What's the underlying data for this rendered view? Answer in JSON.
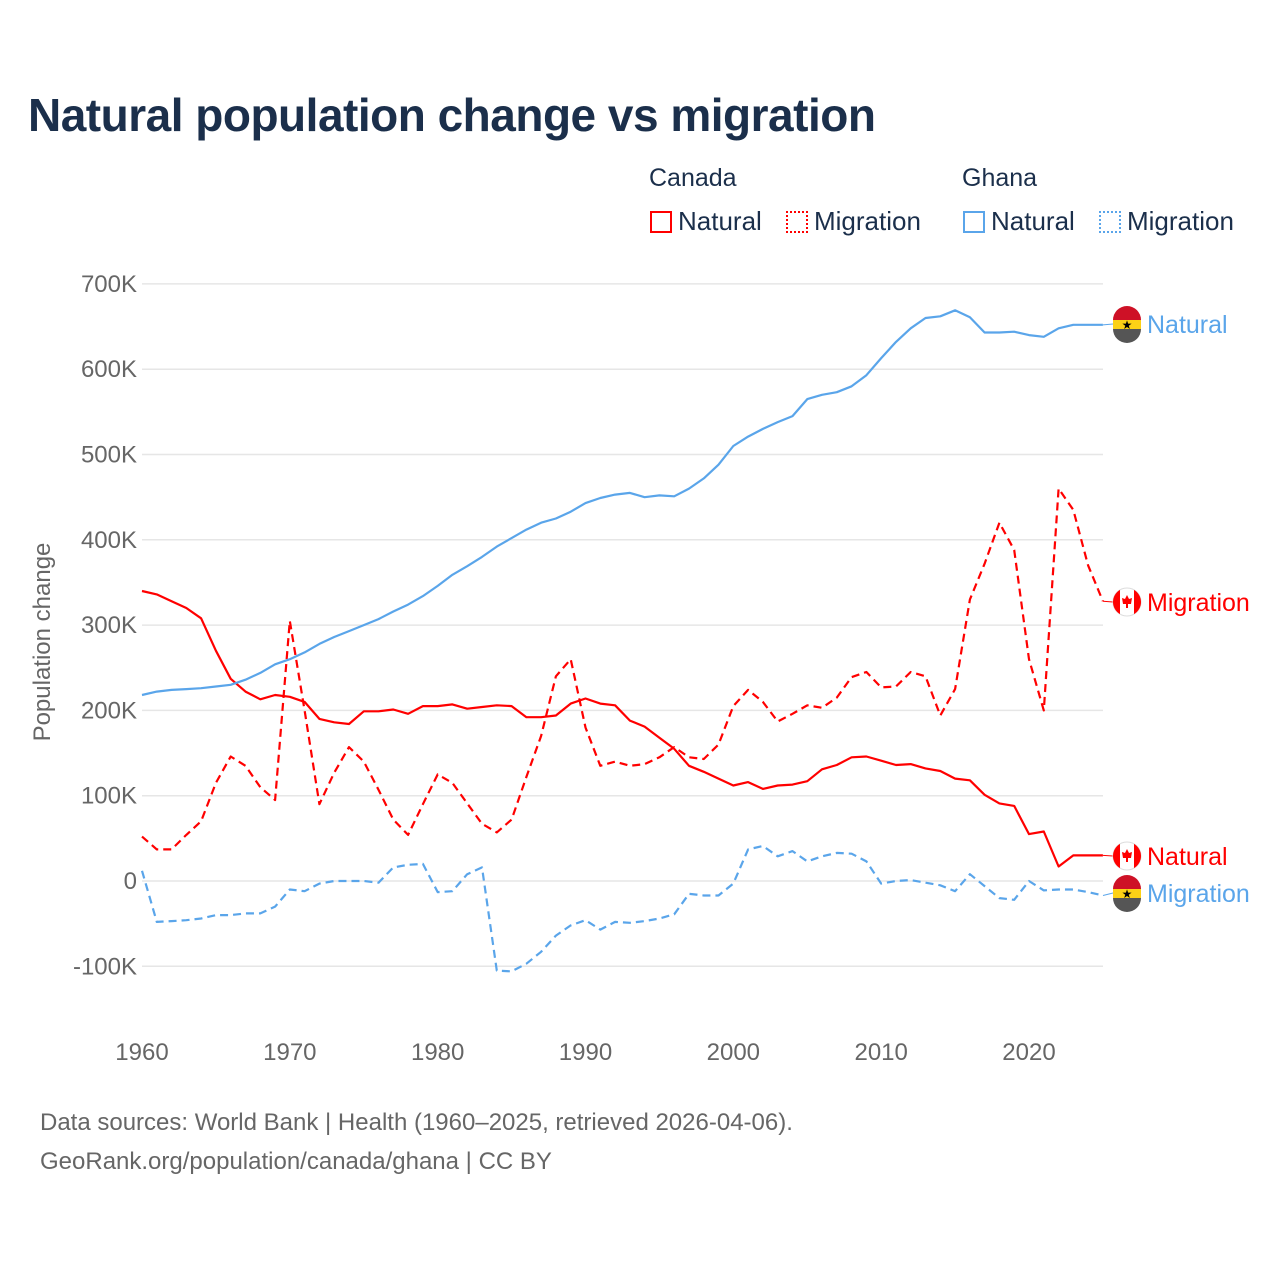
{
  "title": "Natural population change vs migration",
  "legend": {
    "groups": [
      {
        "name": "Canada",
        "color": "#ff0000",
        "items": [
          "Natural",
          "Migration"
        ]
      },
      {
        "name": "Ghana",
        "color": "#5aa5ea",
        "items": [
          "Natural",
          "Migration"
        ]
      }
    ]
  },
  "chart_data": {
    "type": "line",
    "title": "Natural population change vs migration",
    "xlabel": "",
    "ylabel": "Population change",
    "xlim": [
      1960,
      2025
    ],
    "ylim": [
      -100000,
      700000
    ],
    "x_ticks": [
      "1960",
      "1970",
      "1980",
      "1990",
      "2000",
      "2010",
      "2020"
    ],
    "y_ticks": [
      "700K",
      "600K",
      "500K",
      "400K",
      "300K",
      "200K",
      "100K",
      "0",
      "-100K"
    ],
    "grid": true,
    "x_start": 1960,
    "series": [
      {
        "name": "Canada Natural",
        "country": "Canada",
        "kind": "Natural",
        "color": "#ff0000",
        "dash": false,
        "end_label": "Natural",
        "values": [
          340,
          336,
          328,
          320,
          308,
          270,
          237,
          222,
          213,
          218,
          216,
          210,
          190,
          186,
          184,
          199,
          199,
          201,
          196,
          205,
          205,
          207,
          202,
          204,
          206,
          205,
          192,
          192,
          194,
          208,
          214,
          208,
          206,
          188,
          181,
          168,
          155,
          135,
          128,
          120,
          112,
          116,
          108,
          112,
          113,
          117,
          131,
          136,
          145,
          146,
          141,
          136,
          137,
          132,
          129,
          120,
          118,
          101,
          91,
          88,
          55,
          58,
          17,
          30,
          30,
          30
        ]
      },
      {
        "name": "Canada Migration",
        "country": "Canada",
        "kind": "Migration",
        "color": "#ff0000",
        "dash": true,
        "end_label": "Migration",
        "values": [
          52,
          37,
          37,
          54,
          70,
          115,
          146,
          135,
          110,
          95,
          305,
          200,
          90,
          127,
          157,
          140,
          107,
          72,
          54,
          90,
          125,
          115,
          91,
          67,
          57,
          72,
          122,
          170,
          240,
          260,
          180,
          135,
          140,
          135,
          137,
          145,
          157,
          145,
          143,
          160,
          205,
          224,
          210,
          187,
          196,
          206,
          203,
          215,
          239,
          245,
          227,
          228,
          245,
          240,
          194,
          225,
          330,
          372,
          420,
          388,
          260,
          200,
          460,
          435,
          370,
          328
        ]
      },
      {
        "name": "Ghana Natural",
        "country": "Ghana",
        "kind": "Natural",
        "color": "#5aa5ea",
        "dash": false,
        "end_label": "Natural",
        "values": [
          218,
          222,
          224,
          225,
          226,
          228,
          230,
          236,
          244,
          254,
          260,
          268,
          278,
          286,
          293,
          300,
          307,
          316,
          324,
          334,
          346,
          359,
          369,
          380,
          392,
          402,
          412,
          420,
          425,
          433,
          443,
          449,
          453,
          455,
          450,
          452,
          451,
          460,
          472,
          488,
          510,
          521,
          530,
          538,
          545,
          565,
          570,
          573,
          580,
          593,
          613,
          632,
          648,
          660,
          662,
          669,
          661,
          643,
          643,
          644,
          640,
          638,
          648,
          652,
          652,
          652
        ]
      },
      {
        "name": "Ghana Migration",
        "country": "Ghana",
        "kind": "Migration",
        "color": "#5aa5ea",
        "dash": true,
        "end_label": "Migration",
        "values": [
          12,
          -48,
          -47,
          -46,
          -44,
          -40,
          -40,
          -38,
          -38,
          -30,
          -10,
          -12,
          -3,
          0,
          0,
          0,
          -2,
          16,
          19,
          20,
          -13,
          -12,
          8,
          16,
          -105,
          -106,
          -97,
          -83,
          -64,
          -52,
          -46,
          -57,
          -48,
          -49,
          -47,
          -44,
          -39,
          -15,
          -17,
          -17,
          -3,
          37,
          41,
          29,
          35,
          23,
          29,
          33,
          32,
          23,
          -3,
          0,
          1,
          -2,
          -5,
          -12,
          8,
          -6,
          -20,
          -22,
          0,
          -11,
          -10,
          -10,
          -13,
          -17
        ]
      }
    ],
    "value_unit": "thousands"
  },
  "footer": {
    "line1": "Data sources: World Bank | Health (1960–2025, retrieved 2026-04-06).",
    "line2": "GeoRank.org/population/canada/ghana | CC BY"
  }
}
